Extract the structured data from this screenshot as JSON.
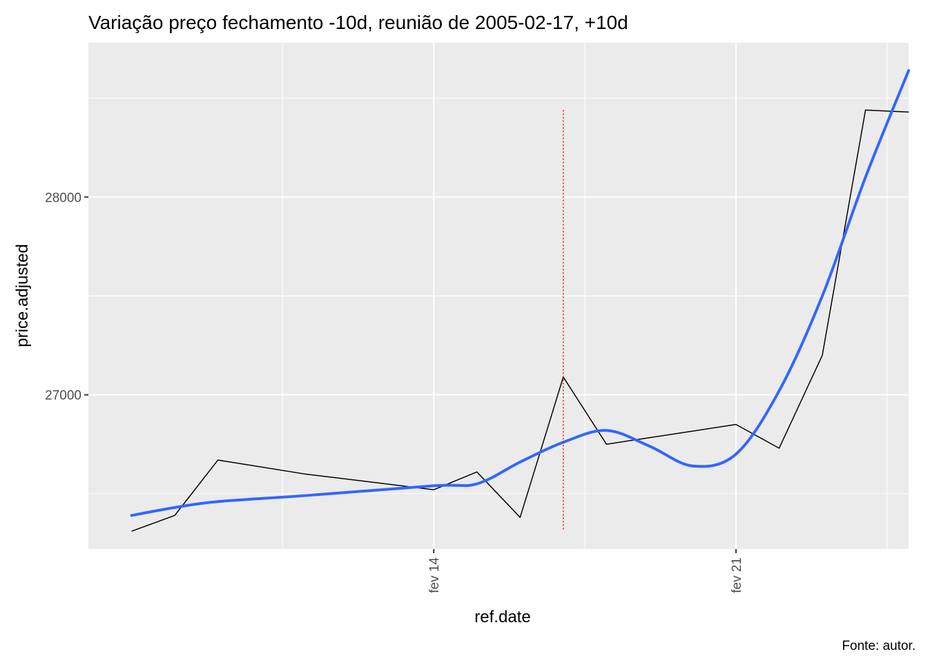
{
  "chart_data": {
    "type": "line",
    "title": "Variação preço fechamento -10d, reunião de 2005-02-17, +10d",
    "xlabel": "ref.date",
    "ylabel": "price.adjusted",
    "caption": "Fonte: autor.",
    "x_tick_labels": [
      "fev 14",
      "fev 21"
    ],
    "x_tick_dates": [
      "2005-02-14",
      "2005-02-21"
    ],
    "y_tick_values": [
      27000,
      28000
    ],
    "y_tick_labels": [
      "27000",
      "28000"
    ],
    "xlim": [
      "2005-02-06",
      "2005-02-25"
    ],
    "ylim": [
      26220,
      28780
    ],
    "grid": true,
    "background": "#ebebeb",
    "grid_color": "#ffffff",
    "series": [
      {
        "kind": "line",
        "color": "#000000",
        "x": [
          "2005-02-07",
          "2005-02-08",
          "2005-02-09",
          "2005-02-11",
          "2005-02-14",
          "2005-02-15",
          "2005-02-16",
          "2005-02-17",
          "2005-02-18",
          "2005-02-21",
          "2005-02-22",
          "2005-02-23",
          "2005-02-24",
          "2005-02-25"
        ],
        "y": [
          26310,
          26390,
          26670,
          26600,
          26520,
          26610,
          26380,
          27090,
          26750,
          26850,
          26730,
          27200,
          28440,
          28430
        ]
      },
      {
        "kind": "smooth",
        "color": "#3366ff",
        "x": [
          "2005-02-07",
          "2005-02-08",
          "2005-02-09",
          "2005-02-11",
          "2005-02-14",
          "2005-02-15",
          "2005-02-16",
          "2005-02-17",
          "2005-02-18",
          "2005-02-19",
          "2005-02-20",
          "2005-02-21",
          "2005-02-22",
          "2005-02-23",
          "2005-02-24",
          "2005-02-25"
        ],
        "y": [
          26390,
          26430,
          26460,
          26490,
          26540,
          26550,
          26660,
          26760,
          26820,
          26740,
          26640,
          26700,
          27020,
          27500,
          28100,
          28640
        ]
      }
    ],
    "vline": {
      "x": "2005-02-17",
      "color": "#ff0000",
      "style": "dotted",
      "y_range": [
        26310,
        28440
      ]
    }
  }
}
